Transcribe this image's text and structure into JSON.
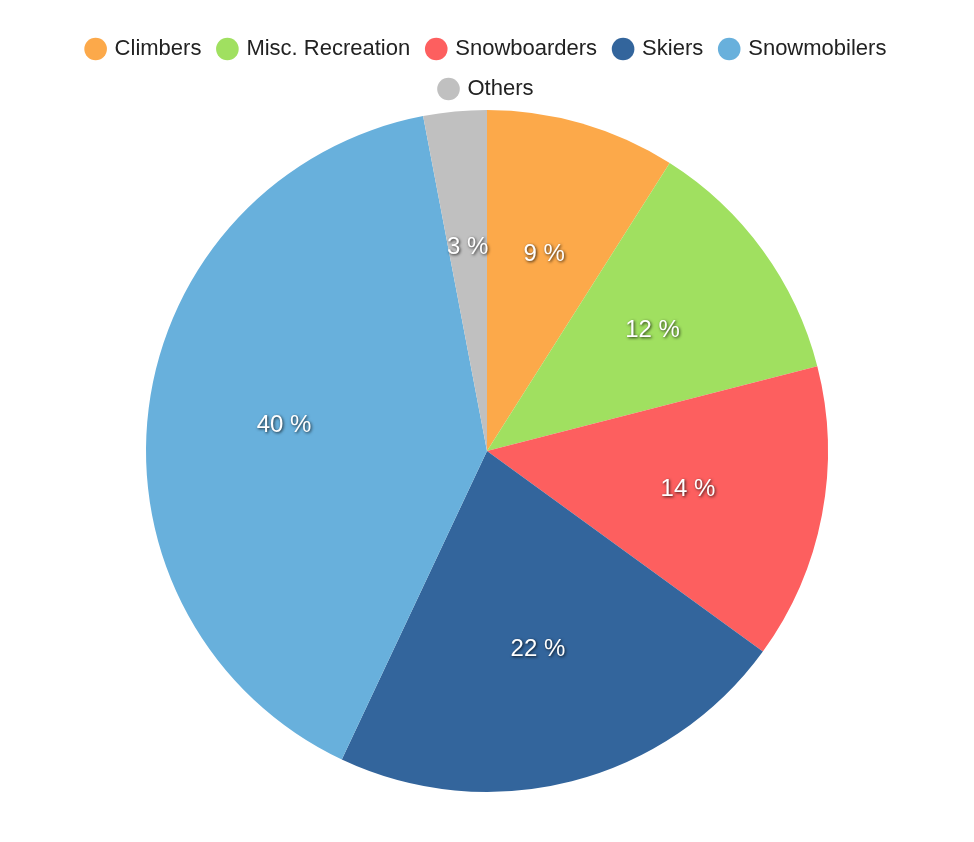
{
  "chart_data": {
    "type": "pie",
    "categories": [
      "Climbers",
      "Misc. Recreation",
      "Snowboarders",
      "Skiers",
      "Snowmobilers",
      "Others"
    ],
    "values": [
      9,
      12,
      14,
      22,
      40,
      3
    ],
    "value_labels": [
      "9 %",
      "12 %",
      "14 %",
      "22 %",
      "40 %",
      "3 %"
    ],
    "colors": [
      "#fca94a",
      "#a0e060",
      "#fd5f5f",
      "#33659c",
      "#68b0dc",
      "#c0c0c0"
    ],
    "data_labels": true,
    "legend": "top"
  }
}
